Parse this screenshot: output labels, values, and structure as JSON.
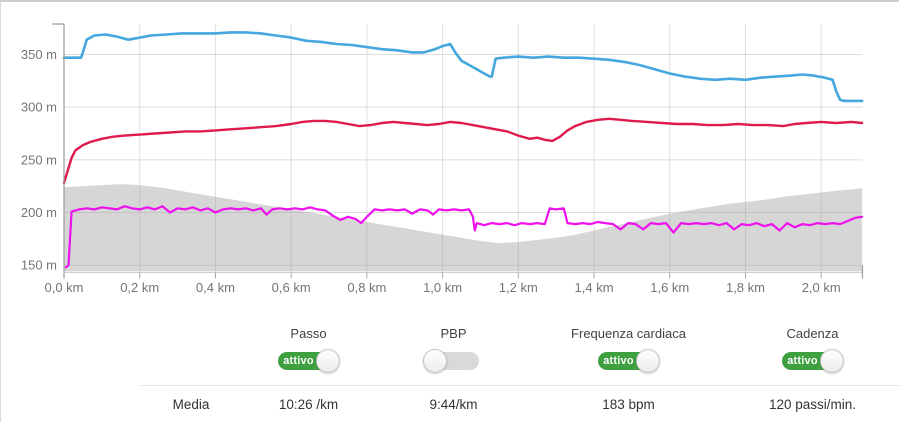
{
  "colors": {
    "pace_line": "#45a7de",
    "heart_rate_line": "#df1a4d",
    "cadence_line": "#ee10ee",
    "elevation_fill": "#d6d6d6",
    "toggle_on_green": "#3fa03f",
    "toggle_off_gray": "#d9d9d9",
    "axis_text": "#757575"
  },
  "summary": {
    "row_label": "Media"
  },
  "controls": [
    {
      "label": "Passo",
      "state": "on",
      "state_label": "attivo",
      "average": "10:26 /km"
    },
    {
      "label": "PBP",
      "state": "off",
      "state_label": "",
      "average": "9:44/km"
    },
    {
      "label": "Frequenza cardiaca",
      "state": "on",
      "state_label": "attivo",
      "average": "183 bpm"
    },
    {
      "label": "Cadenza",
      "state": "on",
      "state_label": "attivo",
      "average": "120 passi/min."
    }
  ],
  "chart_data": {
    "type": "line",
    "title": "",
    "xlabel": "",
    "ylabel": "",
    "x_unit": "km",
    "y_unit": "m",
    "x_range": [
      0,
      2.11
    ],
    "y_display_range": [
      143,
      378
    ],
    "grid": true,
    "y_ticks": [
      {
        "label": "350 m",
        "value": 350
      },
      {
        "label": "300 m",
        "value": 300
      },
      {
        "label": "250 m",
        "value": 250
      },
      {
        "label": "200 m",
        "value": 200
      },
      {
        "label": "150 m",
        "value": 150
      }
    ],
    "x_ticks": [
      {
        "label": "0,0 km",
        "km": 0.0
      },
      {
        "label": "0,2 km",
        "km": 0.2
      },
      {
        "label": "0,4 km",
        "km": 0.4
      },
      {
        "label": "0,6 km",
        "km": 0.6
      },
      {
        "label": "0,8 km",
        "km": 0.8
      },
      {
        "label": "1,0 km",
        "km": 1.0
      },
      {
        "label": "1,2 km",
        "km": 1.2
      },
      {
        "label": "1,4 km",
        "km": 1.4
      },
      {
        "label": "1,6 km",
        "km": 1.6
      },
      {
        "label": "1,8 km",
        "km": 1.8
      },
      {
        "label": "2,0 km",
        "km": 2.0
      }
    ],
    "series": [
      {
        "id": "elevation",
        "label": "",
        "type": "area",
        "color": "#d6d6d6",
        "width": 1,
        "points": [
          [
            0,
            224
          ],
          [
            0.05,
            225
          ],
          [
            0.1,
            226
          ],
          [
            0.15,
            227
          ],
          [
            0.2,
            226
          ],
          [
            0.25,
            224
          ],
          [
            0.3,
            221
          ],
          [
            0.35,
            218
          ],
          [
            0.4,
            215
          ],
          [
            0.45,
            212
          ],
          [
            0.5,
            209
          ],
          [
            0.55,
            206
          ],
          [
            0.6,
            203
          ],
          [
            0.65,
            200
          ],
          [
            0.7,
            197
          ],
          [
            0.75,
            194
          ],
          [
            0.8,
            191
          ],
          [
            0.85,
            188
          ],
          [
            0.9,
            185
          ],
          [
            0.95,
            182
          ],
          [
            1.0,
            179
          ],
          [
            1.05,
            176
          ],
          [
            1.1,
            173
          ],
          [
            1.15,
            171
          ],
          [
            1.2,
            172
          ],
          [
            1.25,
            174
          ],
          [
            1.3,
            176
          ],
          [
            1.35,
            179
          ],
          [
            1.4,
            183
          ],
          [
            1.45,
            187
          ],
          [
            1.5,
            191
          ],
          [
            1.55,
            195
          ],
          [
            1.6,
            199
          ],
          [
            1.65,
            202
          ],
          [
            1.7,
            205
          ],
          [
            1.75,
            208
          ],
          [
            1.8,
            210
          ],
          [
            1.85,
            212
          ],
          [
            1.9,
            215
          ],
          [
            1.95,
            217
          ],
          [
            2.0,
            219
          ],
          [
            2.05,
            221
          ],
          [
            2.108,
            223
          ]
        ]
      },
      {
        "id": "pace",
        "label": "Passo",
        "type": "line",
        "color": "#45a7de",
        "width": 2.6,
        "points": [
          [
            0,
            347
          ],
          [
            0.045,
            347
          ],
          [
            0.05,
            352
          ],
          [
            0.06,
            364
          ],
          [
            0.08,
            368
          ],
          [
            0.11,
            369
          ],
          [
            0.14,
            367
          ],
          [
            0.17,
            364
          ],
          [
            0.2,
            366
          ],
          [
            0.23,
            368
          ],
          [
            0.27,
            369
          ],
          [
            0.31,
            370
          ],
          [
            0.35,
            370
          ],
          [
            0.4,
            370
          ],
          [
            0.44,
            371
          ],
          [
            0.48,
            371
          ],
          [
            0.52,
            370
          ],
          [
            0.56,
            368
          ],
          [
            0.6,
            366
          ],
          [
            0.64,
            363
          ],
          [
            0.68,
            362
          ],
          [
            0.72,
            360
          ],
          [
            0.76,
            359
          ],
          [
            0.8,
            357
          ],
          [
            0.84,
            355
          ],
          [
            0.88,
            354
          ],
          [
            0.92,
            352
          ],
          [
            0.95,
            352
          ],
          [
            0.98,
            355
          ],
          [
            1.0,
            358
          ],
          [
            1.02,
            360
          ],
          [
            1.035,
            351
          ],
          [
            1.05,
            344
          ],
          [
            1.07,
            340
          ],
          [
            1.09,
            336
          ],
          [
            1.11,
            332
          ],
          [
            1.125,
            329
          ],
          [
            1.13,
            329
          ],
          [
            1.14,
            346
          ],
          [
            1.16,
            347
          ],
          [
            1.2,
            348
          ],
          [
            1.24,
            347
          ],
          [
            1.28,
            348
          ],
          [
            1.32,
            347
          ],
          [
            1.36,
            347
          ],
          [
            1.4,
            346
          ],
          [
            1.44,
            345
          ],
          [
            1.48,
            343
          ],
          [
            1.52,
            340
          ],
          [
            1.56,
            336
          ],
          [
            1.6,
            332
          ],
          [
            1.64,
            329
          ],
          [
            1.68,
            327
          ],
          [
            1.72,
            326
          ],
          [
            1.76,
            327
          ],
          [
            1.8,
            326
          ],
          [
            1.84,
            328
          ],
          [
            1.88,
            329
          ],
          [
            1.92,
            330
          ],
          [
            1.95,
            331
          ],
          [
            1.98,
            330
          ],
          [
            2.01,
            328
          ],
          [
            2.03,
            326
          ],
          [
            2.04,
            315
          ],
          [
            2.05,
            307
          ],
          [
            2.06,
            306
          ],
          [
            2.108,
            306
          ]
        ]
      },
      {
        "id": "heart_rate",
        "label": "Frequenza cardiaca",
        "type": "line",
        "color": "#df1a4d",
        "width": 2.4,
        "points": [
          [
            0,
            228
          ],
          [
            0.01,
            240
          ],
          [
            0.02,
            252
          ],
          [
            0.03,
            259
          ],
          [
            0.05,
            264
          ],
          [
            0.07,
            267
          ],
          [
            0.1,
            270
          ],
          [
            0.13,
            272
          ],
          [
            0.16,
            273
          ],
          [
            0.2,
            274
          ],
          [
            0.24,
            275
          ],
          [
            0.28,
            276
          ],
          [
            0.32,
            277
          ],
          [
            0.36,
            277
          ],
          [
            0.4,
            278
          ],
          [
            0.44,
            279
          ],
          [
            0.48,
            280
          ],
          [
            0.52,
            281
          ],
          [
            0.56,
            282
          ],
          [
            0.6,
            284
          ],
          [
            0.63,
            286
          ],
          [
            0.66,
            287
          ],
          [
            0.69,
            287
          ],
          [
            0.72,
            286
          ],
          [
            0.75,
            284
          ],
          [
            0.78,
            282
          ],
          [
            0.81,
            283
          ],
          [
            0.84,
            285
          ],
          [
            0.87,
            286
          ],
          [
            0.9,
            285
          ],
          [
            0.93,
            284
          ],
          [
            0.96,
            283
          ],
          [
            0.99,
            284
          ],
          [
            1.02,
            286
          ],
          [
            1.05,
            285
          ],
          [
            1.08,
            283
          ],
          [
            1.11,
            281
          ],
          [
            1.14,
            279
          ],
          [
            1.17,
            277
          ],
          [
            1.2,
            273
          ],
          [
            1.23,
            270
          ],
          [
            1.25,
            271
          ],
          [
            1.27,
            269
          ],
          [
            1.29,
            268
          ],
          [
            1.31,
            272
          ],
          [
            1.33,
            278
          ],
          [
            1.35,
            282
          ],
          [
            1.38,
            286
          ],
          [
            1.41,
            288
          ],
          [
            1.44,
            289
          ],
          [
            1.47,
            288
          ],
          [
            1.5,
            287
          ],
          [
            1.54,
            286
          ],
          [
            1.58,
            285
          ],
          [
            1.62,
            284
          ],
          [
            1.66,
            284
          ],
          [
            1.7,
            283
          ],
          [
            1.74,
            283
          ],
          [
            1.78,
            284
          ],
          [
            1.82,
            283
          ],
          [
            1.86,
            283
          ],
          [
            1.9,
            282
          ],
          [
            1.93,
            284
          ],
          [
            1.96,
            285
          ],
          [
            2.0,
            286
          ],
          [
            2.04,
            285
          ],
          [
            2.08,
            286
          ],
          [
            2.108,
            285
          ]
        ]
      },
      {
        "id": "cadence",
        "label": "Cadenza",
        "type": "line",
        "color": "#ee10ee",
        "width": 2.2,
        "points": [
          [
            0.005,
            148
          ],
          [
            0.012,
            150
          ],
          [
            0.02,
            201
          ],
          [
            0.04,
            203
          ],
          [
            0.06,
            204
          ],
          [
            0.08,
            203
          ],
          [
            0.1,
            205
          ],
          [
            0.12,
            204
          ],
          [
            0.14,
            203
          ],
          [
            0.16,
            206
          ],
          [
            0.18,
            204
          ],
          [
            0.2,
            203
          ],
          [
            0.22,
            205
          ],
          [
            0.24,
            203
          ],
          [
            0.26,
            206
          ],
          [
            0.28,
            200
          ],
          [
            0.3,
            204
          ],
          [
            0.32,
            203
          ],
          [
            0.34,
            205
          ],
          [
            0.36,
            202
          ],
          [
            0.38,
            204
          ],
          [
            0.4,
            200
          ],
          [
            0.42,
            203
          ],
          [
            0.44,
            204
          ],
          [
            0.46,
            203
          ],
          [
            0.48,
            204
          ],
          [
            0.5,
            202
          ],
          [
            0.52,
            204
          ],
          [
            0.535,
            198
          ],
          [
            0.55,
            203
          ],
          [
            0.57,
            204
          ],
          [
            0.59,
            203
          ],
          [
            0.61,
            204
          ],
          [
            0.63,
            203
          ],
          [
            0.65,
            205
          ],
          [
            0.67,
            203
          ],
          [
            0.69,
            202
          ],
          [
            0.71,
            197
          ],
          [
            0.73,
            193
          ],
          [
            0.75,
            196
          ],
          [
            0.77,
            194
          ],
          [
            0.785,
            190
          ],
          [
            0.8,
            196
          ],
          [
            0.82,
            203
          ],
          [
            0.84,
            202
          ],
          [
            0.86,
            203
          ],
          [
            0.88,
            202
          ],
          [
            0.9,
            203
          ],
          [
            0.92,
            199
          ],
          [
            0.94,
            203
          ],
          [
            0.96,
            202
          ],
          [
            0.975,
            198
          ],
          [
            0.99,
            203
          ],
          [
            1.01,
            202
          ],
          [
            1.03,
            203
          ],
          [
            1.05,
            202
          ],
          [
            1.07,
            203
          ],
          [
            1.08,
            196
          ],
          [
            1.085,
            183
          ],
          [
            1.09,
            190
          ],
          [
            1.11,
            188
          ],
          [
            1.13,
            190
          ],
          [
            1.15,
            189
          ],
          [
            1.17,
            190
          ],
          [
            1.19,
            188
          ],
          [
            1.21,
            190
          ],
          [
            1.23,
            189
          ],
          [
            1.25,
            190
          ],
          [
            1.27,
            189
          ],
          [
            1.283,
            204
          ],
          [
            1.3,
            203
          ],
          [
            1.32,
            204
          ],
          [
            1.33,
            190
          ],
          [
            1.35,
            189
          ],
          [
            1.37,
            190
          ],
          [
            1.39,
            189
          ],
          [
            1.41,
            191
          ],
          [
            1.43,
            190
          ],
          [
            1.45,
            189
          ],
          [
            1.47,
            184
          ],
          [
            1.49,
            190
          ],
          [
            1.51,
            189
          ],
          [
            1.53,
            184
          ],
          [
            1.55,
            190
          ],
          [
            1.57,
            189
          ],
          [
            1.59,
            190
          ],
          [
            1.61,
            181
          ],
          [
            1.63,
            190
          ],
          [
            1.65,
            189
          ],
          [
            1.67,
            190
          ],
          [
            1.69,
            189
          ],
          [
            1.71,
            190
          ],
          [
            1.73,
            188
          ],
          [
            1.75,
            190
          ],
          [
            1.77,
            184
          ],
          [
            1.79,
            189
          ],
          [
            1.81,
            188
          ],
          [
            1.83,
            190
          ],
          [
            1.85,
            187
          ],
          [
            1.87,
            189
          ],
          [
            1.89,
            183
          ],
          [
            1.91,
            190
          ],
          [
            1.93,
            186
          ],
          [
            1.95,
            189
          ],
          [
            1.97,
            188
          ],
          [
            1.99,
            190
          ],
          [
            2.01,
            189
          ],
          [
            2.03,
            190
          ],
          [
            2.05,
            189
          ],
          [
            2.07,
            192
          ],
          [
            2.09,
            195
          ],
          [
            2.108,
            196
          ]
        ]
      }
    ]
  }
}
